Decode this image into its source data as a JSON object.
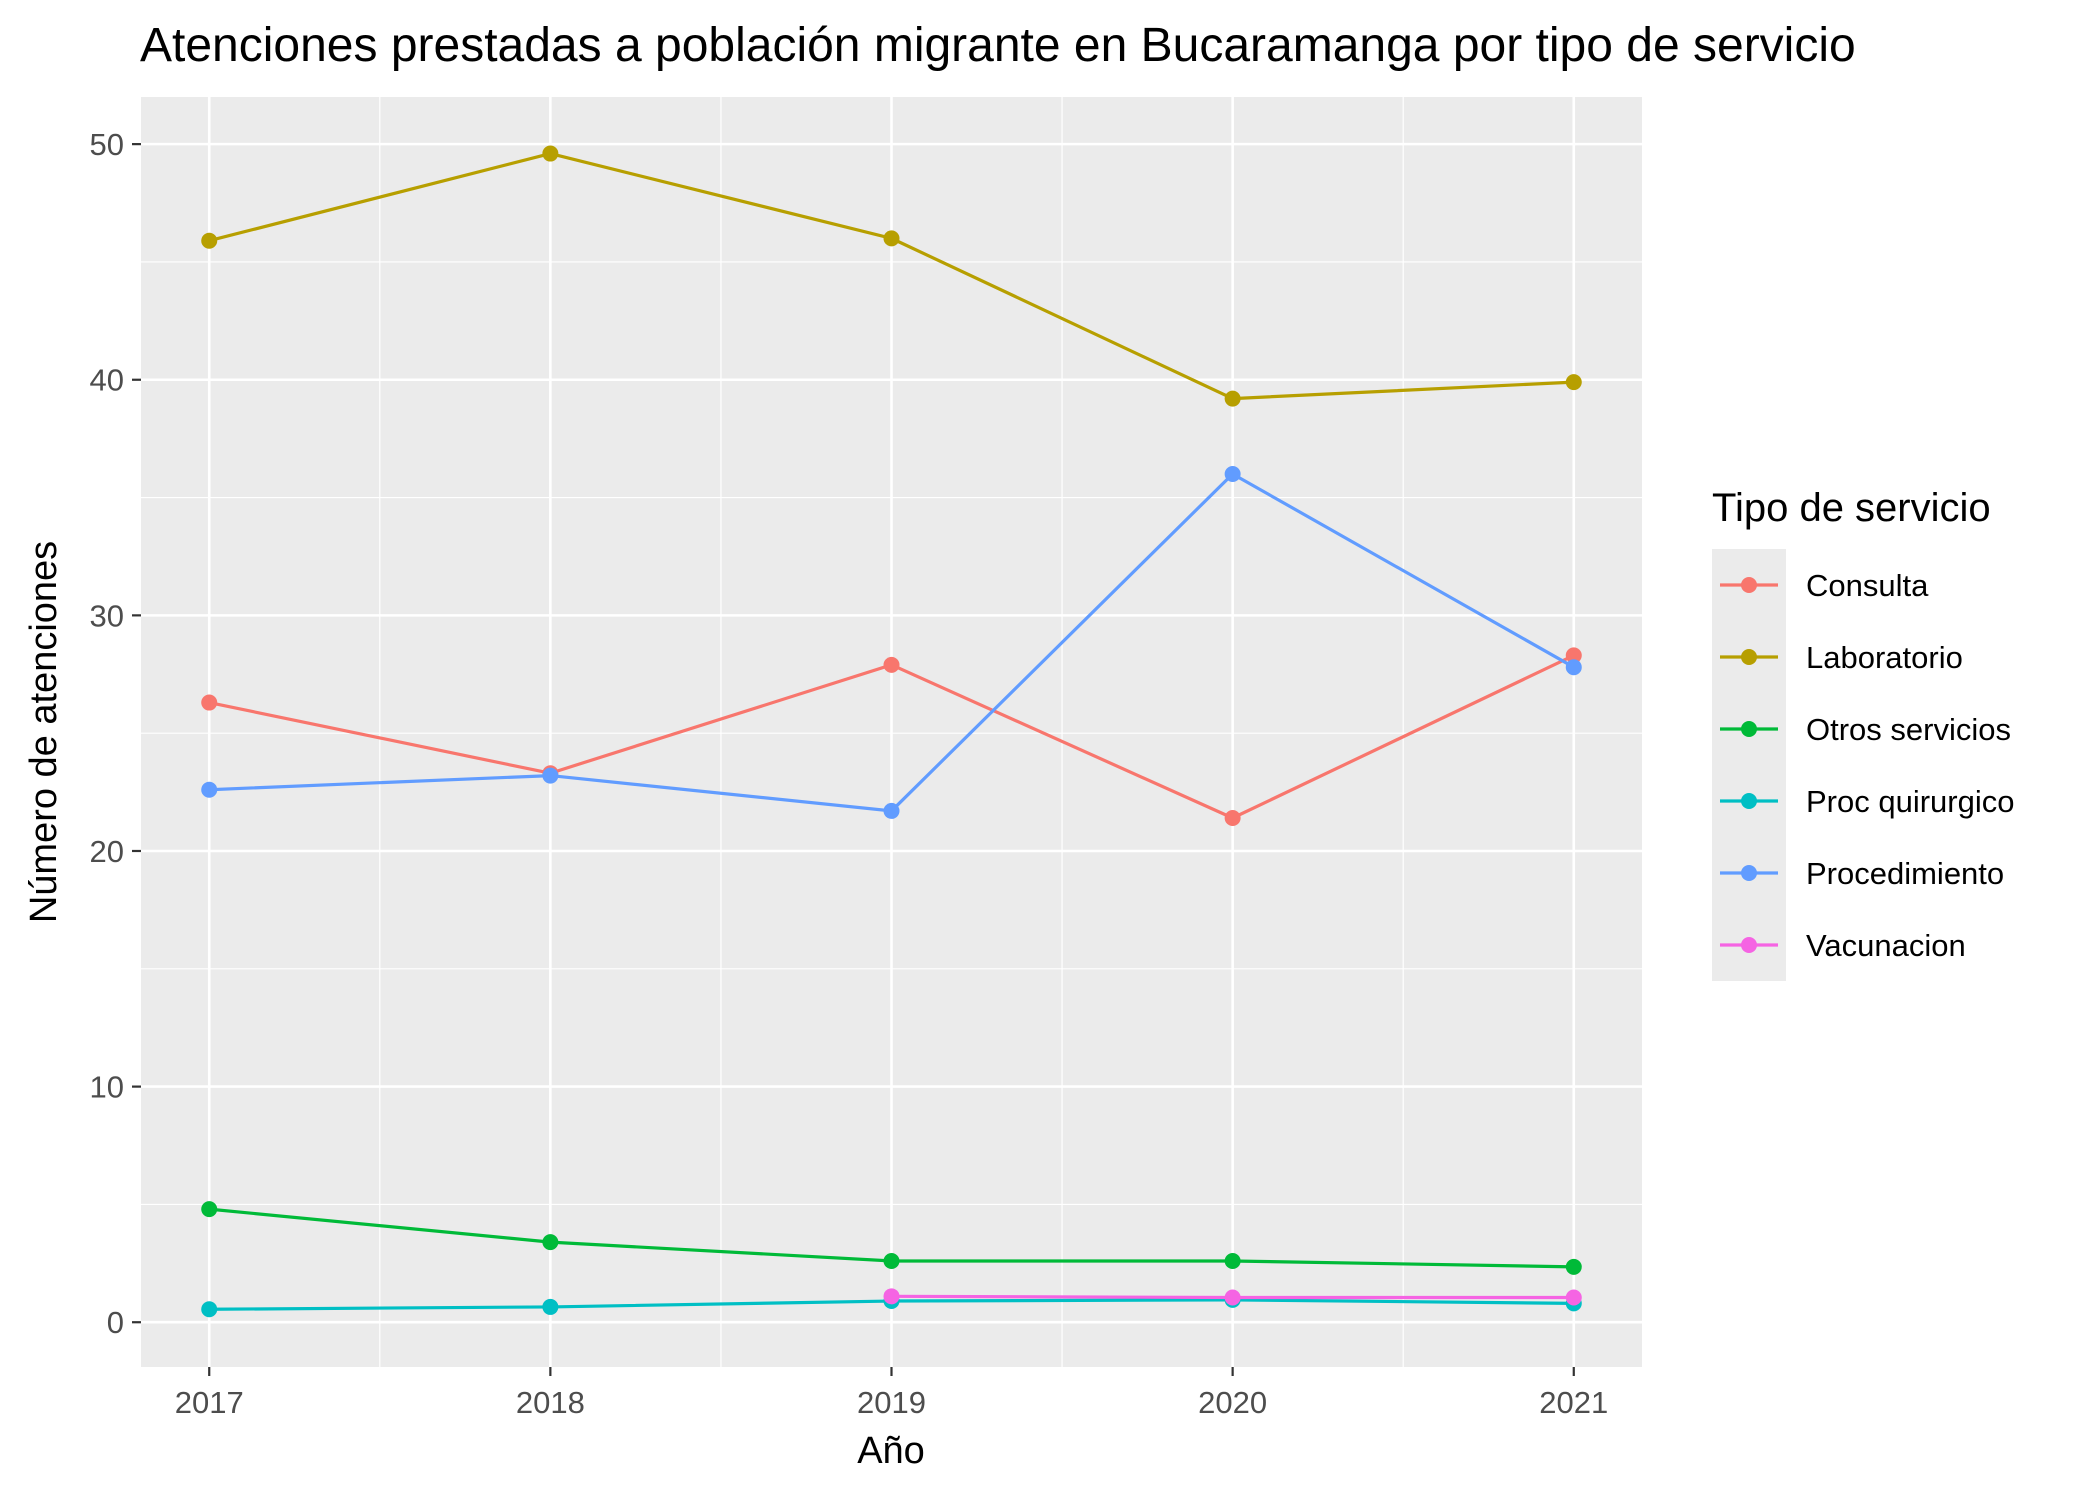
{
  "chart_data": {
    "type": "line",
    "title": "Atenciones prestadas a población migrante en Bucaramanga por tipo de servicio",
    "xlabel": "Año",
    "ylabel": "Número de atenciones",
    "x": [
      "2017",
      "2018",
      "2019",
      "2020",
      "2021"
    ],
    "xlim": [
      2016.8,
      2021.2
    ],
    "ylim": [
      -1.9,
      52
    ],
    "yticks": [
      0,
      10,
      20,
      30,
      40,
      50
    ],
    "grid": true,
    "legend": {
      "title": "Tipo de servicio",
      "position": "right"
    },
    "series": [
      {
        "name": "Consulta",
        "color": "#F8766D",
        "values": [
          26.3,
          23.3,
          27.9,
          21.4,
          28.3
        ]
      },
      {
        "name": "Laboratorio",
        "color": "#B79F00",
        "values": [
          45.9,
          49.6,
          46.0,
          39.2,
          39.9
        ]
      },
      {
        "name": "Otros servicios",
        "color": "#00BA38",
        "values": [
          4.8,
          3.4,
          2.6,
          2.6,
          2.35
        ]
      },
      {
        "name": "Proc quirurgico",
        "color": "#00BFC4",
        "values": [
          0.55,
          0.65,
          0.9,
          0.95,
          0.8
        ]
      },
      {
        "name": "Procedimiento",
        "color": "#619CFF",
        "values": [
          22.6,
          23.2,
          21.7,
          36.0,
          27.8
        ]
      },
      {
        "name": "Vacunacion",
        "color": "#F564E3",
        "values": [
          null,
          null,
          1.1,
          1.05,
          1.05
        ]
      }
    ]
  }
}
